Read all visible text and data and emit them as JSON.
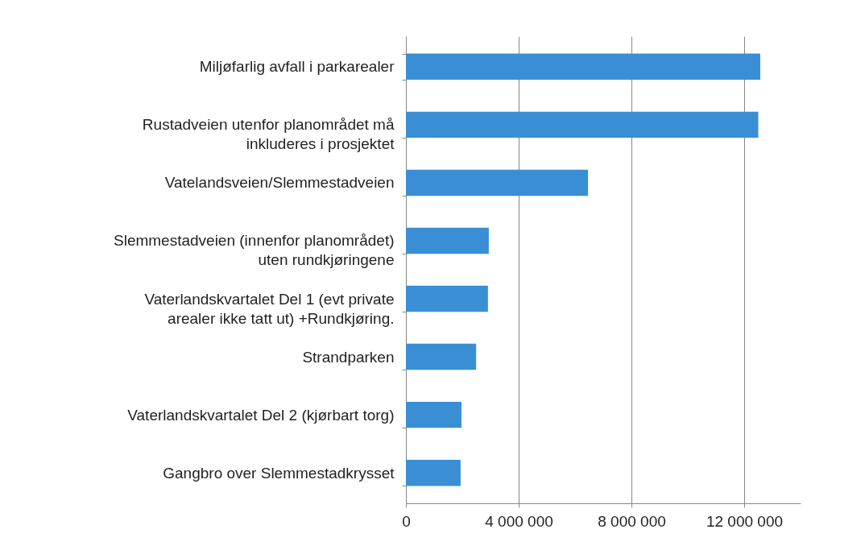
{
  "chart_data": {
    "type": "bar",
    "orientation": "horizontal",
    "categories": [
      "Miljøfarlig avfall i parkarealer",
      "Rustadveien utenfor planområdet må\ninkluderes i prosjektet",
      "Vatelandsveien/Slemmestadveien",
      "Slemmestadveien (innenfor planområdet)\nuten rundkjøringene",
      "Vaterlandskvartalet Del 1 (evt private\narealer ikke tatt ut) +Rundkjøring.",
      "Strandparken",
      "Vaterlandskvartalet Del 2 (kjørbart torg)",
      "Gangbro over Slemmestadkrysset"
    ],
    "values": [
      12570000,
      12500000,
      6460000,
      2940000,
      2910000,
      2490000,
      1970000,
      1940000
    ],
    "color": "#3a8fd4",
    "xlim": [
      0,
      14000000
    ],
    "xticks": [
      0,
      {
        "value": 4000000,
        "label": "4 000 000"
      },
      {
        "value": 8000000,
        "label": "8 000 000"
      },
      {
        "value": 12000000,
        "label": "12 000 000"
      }
    ],
    "grid": "x"
  }
}
